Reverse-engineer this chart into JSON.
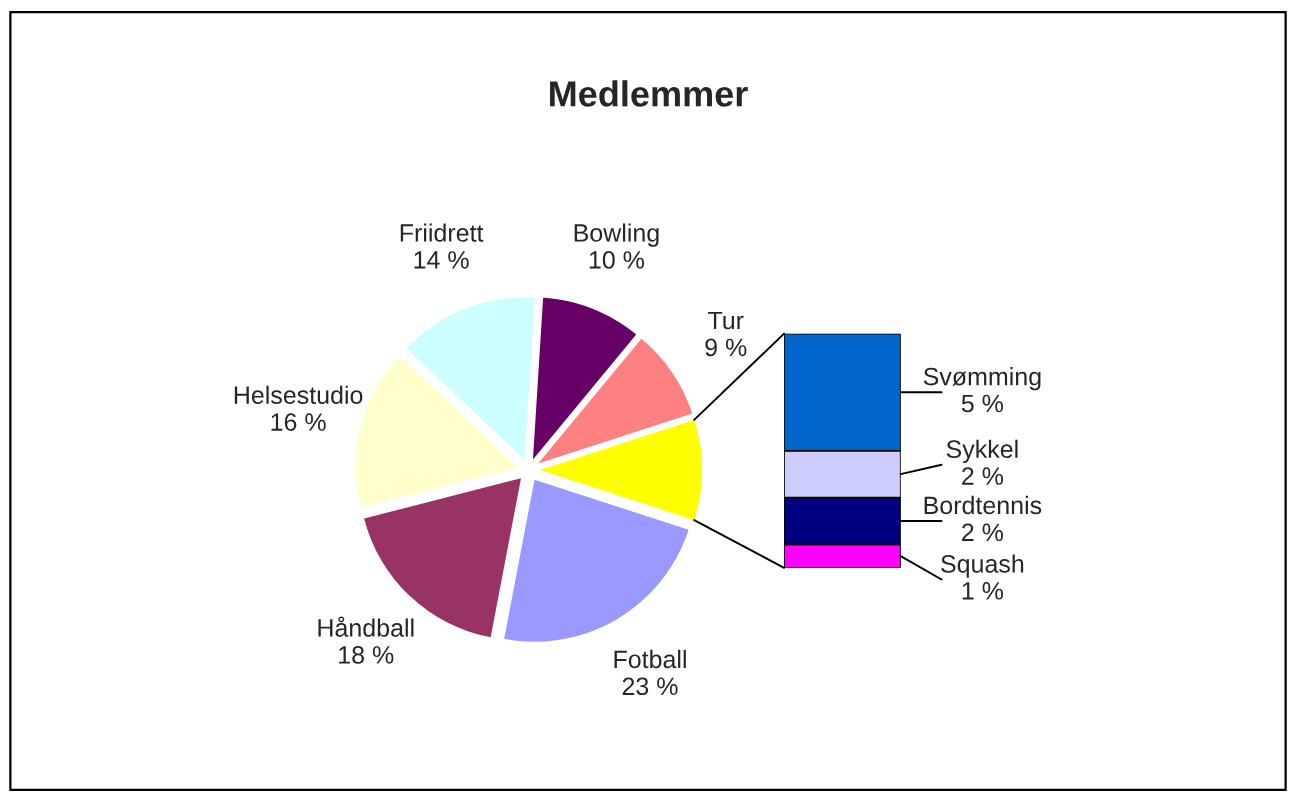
{
  "chart_data": [
    {
      "type": "pie",
      "title": "Medlemmer",
      "categories": [
        "Bowling",
        "Tur",
        null,
        "Fotball",
        "Håndball",
        "Helsestudio",
        "Friidrett"
      ],
      "values": [
        10,
        9,
        10,
        23,
        18,
        16,
        14
      ],
      "value_labels": [
        "10 %",
        "9 %",
        null,
        "23 %",
        "18 %",
        "16 %",
        "14 %"
      ],
      "colors": [
        "#660066",
        "#ff8080",
        "#ffff00",
        "#9999ff",
        "#993366",
        "#ffffcc",
        "#ccffff"
      ],
      "legend": false
    },
    {
      "type": "bar",
      "stacked": true,
      "categories": [
        null
      ],
      "tick_labels": false,
      "legend": false,
      "series": [
        {
          "name": "Squash",
          "color": "#ff00ff",
          "values": [
            1
          ],
          "value_labels": [
            "1 %"
          ]
        },
        {
          "name": "Bordtennis",
          "color": "#000080",
          "values": [
            2
          ],
          "value_labels": [
            "2 %"
          ]
        },
        {
          "name": "Sykkel",
          "color": "#ccccff",
          "values": [
            2
          ],
          "value_labels": [
            "2 %"
          ]
        },
        {
          "name": "Svømming",
          "color": "#0066cc",
          "values": [
            5
          ],
          "value_labels": [
            "5 %"
          ]
        }
      ]
    }
  ]
}
